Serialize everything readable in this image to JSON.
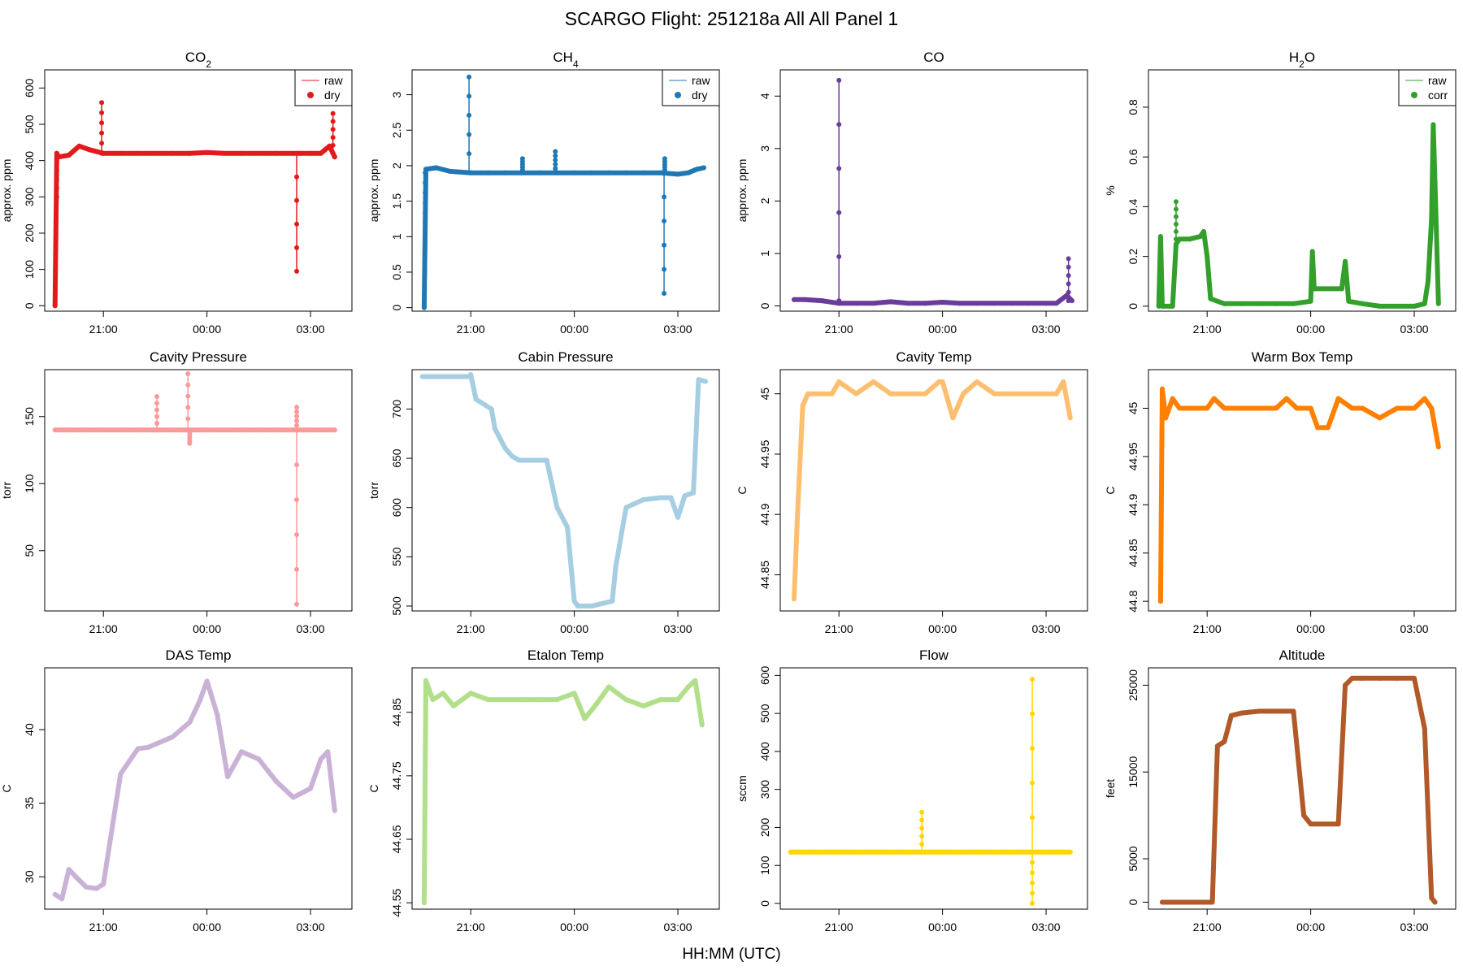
{
  "figure": {
    "title": "SCARGO Flight: 251218a  All All  Panel 1",
    "xlabel": "HH:MM (UTC)"
  },
  "chart_data": [
    {
      "id": "co2",
      "type": "line",
      "title_main": "CO",
      "title_sub": "2",
      "ylabel": "approx. ppm",
      "xlim": [
        19.3,
        4.2
      ],
      "ylim": [
        -15,
        650
      ],
      "xticks": [
        "21:00",
        "00:00",
        "03:00"
      ],
      "yticks": [
        0,
        100,
        200,
        300,
        400,
        500,
        600
      ],
      "tick_rotate": true,
      "color": "#E31A1C",
      "legend": [
        "raw",
        "dry"
      ],
      "series": [
        {
          "name": "dry",
          "x": [
            19.6,
            19.65,
            19.7,
            20.0,
            20.3,
            20.6,
            21.0,
            21.5,
            22.0,
            22.5,
            23.0,
            23.5,
            0.0,
            0.5,
            1.0,
            1.5,
            2.0,
            2.5,
            2.7,
            3.0,
            3.3,
            3.55,
            3.7
          ],
          "y": [
            0,
            420,
            410,
            415,
            440,
            430,
            420,
            420,
            420,
            420,
            420,
            420,
            422,
            420,
            420,
            420,
            420,
            420,
            420,
            420,
            420,
            440,
            410
          ]
        }
      ],
      "spikes": [
        {
          "x": 19.65,
          "y0": 420,
          "y1": 300
        },
        {
          "x": 20.95,
          "y0": 420,
          "y1": 560
        },
        {
          "x": 2.6,
          "y0": 420,
          "y1": 95
        },
        {
          "x": 3.65,
          "y0": 420,
          "y1": 530
        }
      ]
    },
    {
      "id": "ch4",
      "type": "line",
      "title_main": "CH",
      "title_sub": "4",
      "ylabel": "approx. ppm",
      "xlim": [
        19.3,
        4.2
      ],
      "ylim": [
        -0.05,
        3.35
      ],
      "xticks": [
        "21:00",
        "00:00",
        "03:00"
      ],
      "yticks": [
        0.0,
        0.5,
        1.0,
        1.5,
        2.0,
        2.5,
        3.0
      ],
      "tick_rotate": true,
      "color": "#1F78B4",
      "legend": [
        "raw",
        "dry"
      ],
      "series": [
        {
          "name": "dry",
          "x": [
            19.65,
            19.7,
            20.0,
            20.4,
            21.0,
            21.5,
            22.0,
            22.5,
            23.0,
            23.5,
            0.0,
            0.5,
            1.0,
            1.5,
            2.0,
            2.5,
            3.0,
            3.3,
            3.55,
            3.75
          ],
          "y": [
            0.0,
            1.95,
            1.97,
            1.92,
            1.9,
            1.9,
            1.9,
            1.9,
            1.9,
            1.9,
            1.9,
            1.9,
            1.9,
            1.9,
            1.9,
            1.9,
            1.88,
            1.9,
            1.95,
            1.97
          ]
        }
      ],
      "spikes": [
        {
          "x": 19.68,
          "y0": 1.9,
          "y1": 1.2
        },
        {
          "x": 20.95,
          "y0": 1.9,
          "y1": 3.25
        },
        {
          "x": 22.5,
          "y0": 1.9,
          "y1": 2.1
        },
        {
          "x": 23.45,
          "y0": 1.9,
          "y1": 2.2
        },
        {
          "x": 2.6,
          "y0": 1.9,
          "y1": 0.2
        },
        {
          "x": 2.62,
          "y0": 1.9,
          "y1": 2.1
        }
      ]
    },
    {
      "id": "co",
      "type": "scatter",
      "title_main": "CO",
      "title_sub": "",
      "ylabel": "approx. ppm",
      "xlim": [
        19.3,
        4.2
      ],
      "ylim": [
        -0.1,
        4.5
      ],
      "xticks": [
        "21:00",
        "00:00",
        "03:00"
      ],
      "yticks": [
        0,
        1,
        2,
        3,
        4
      ],
      "tick_rotate": true,
      "color": "#6A3D9A",
      "legend": [],
      "series": [
        {
          "name": "CO",
          "x": [
            19.7,
            20.0,
            20.5,
            21.0,
            21.5,
            22.0,
            22.5,
            23.0,
            23.5,
            0.0,
            0.5,
            1.0,
            1.5,
            2.0,
            2.5,
            3.0,
            3.3,
            3.6,
            3.75
          ],
          "y": [
            0.12,
            0.12,
            0.1,
            0.05,
            0.05,
            0.05,
            0.08,
            0.05,
            0.05,
            0.07,
            0.05,
            0.05,
            0.05,
            0.05,
            0.05,
            0.05,
            0.05,
            0.2,
            0.1
          ]
        }
      ],
      "spikes": [
        {
          "x": 21.0,
          "y0": 0.1,
          "y1": 4.3
        },
        {
          "x": 3.65,
          "y0": 0.1,
          "y1": 0.9
        }
      ]
    },
    {
      "id": "h2o",
      "type": "line",
      "title_main": "H",
      "title_sub": "2",
      "title_suffix": "O",
      "ylabel": "%",
      "xlim": [
        19.3,
        4.2
      ],
      "ylim": [
        -0.02,
        0.95
      ],
      "xticks": [
        "21:00",
        "00:00",
        "03:00"
      ],
      "yticks": [
        0.0,
        0.2,
        0.4,
        0.6,
        0.8
      ],
      "tick_rotate": true,
      "color": "#33A02C",
      "legend": [
        "raw",
        "corr"
      ],
      "series": [
        {
          "name": "corr",
          "x": [
            19.6,
            19.65,
            19.7,
            20.0,
            20.1,
            20.2,
            20.5,
            20.8,
            20.9,
            21.0,
            21.1,
            21.5,
            22.0,
            22.5,
            23.0,
            23.5,
            0.0,
            0.05,
            0.1,
            0.5,
            0.9,
            1.0,
            1.1,
            1.5,
            2.0,
            2.5,
            3.0,
            3.3,
            3.4,
            3.5,
            3.55,
            3.6,
            3.7
          ],
          "y": [
            0.0,
            0.28,
            0.0,
            0.0,
            0.25,
            0.27,
            0.27,
            0.28,
            0.3,
            0.2,
            0.03,
            0.01,
            0.01,
            0.01,
            0.01,
            0.01,
            0.02,
            0.22,
            0.07,
            0.07,
            0.07,
            0.18,
            0.02,
            0.01,
            0.0,
            0.0,
            0.0,
            0.01,
            0.1,
            0.35,
            0.73,
            0.5,
            0.01
          ]
        }
      ],
      "spikes": [
        {
          "x": 20.1,
          "y0": 0.27,
          "y1": 0.42
        }
      ]
    },
    {
      "id": "cavity-pressure",
      "type": "scatter",
      "title_main": "Cavity Pressure",
      "title_sub": "",
      "ylabel": "torr",
      "xlim": [
        19.3,
        4.2
      ],
      "ylim": [
        5,
        185
      ],
      "xticks": [
        "21:00",
        "00:00",
        "03:00"
      ],
      "yticks": [
        50,
        100,
        150
      ],
      "tick_rotate": true,
      "color": "#FB9A99",
      "legend": [],
      "series": [
        {
          "name": "cavity-pressure",
          "x": [
            19.6,
            20.0,
            20.5,
            21.0,
            21.5,
            22.0,
            22.5,
            23.0,
            23.5,
            0.0,
            0.5,
            1.0,
            1.5,
            2.0,
            2.5,
            3.0,
            3.5,
            3.7
          ],
          "y": [
            140,
            140,
            140,
            140,
            140,
            140,
            140,
            140,
            140,
            140,
            140,
            140,
            140,
            140,
            140,
            140,
            140,
            140
          ]
        }
      ],
      "spikes": [
        {
          "x": 22.55,
          "y0": 140,
          "y1": 165
        },
        {
          "x": 23.45,
          "y0": 140,
          "y1": 182
        },
        {
          "x": 23.5,
          "y0": 140,
          "y1": 130
        },
        {
          "x": 2.6,
          "y0": 140,
          "y1": 10
        },
        {
          "x": 2.6,
          "y0": 140,
          "y1": 157
        }
      ]
    },
    {
      "id": "cabin-pressure",
      "type": "line",
      "title_main": "Cabin Pressure",
      "title_sub": "",
      "ylabel": "torr",
      "xlim": [
        19.3,
        4.2
      ],
      "ylim": [
        495,
        740
      ],
      "xticks": [
        "21:00",
        "00:00",
        "03:00"
      ],
      "yticks": [
        500,
        550,
        600,
        650,
        700
      ],
      "tick_rotate": true,
      "color": "#A6CEE3",
      "legend": [],
      "series": [
        {
          "name": "cabin-pressure",
          "x": [
            19.6,
            20.5,
            20.95,
            21.0,
            21.15,
            21.6,
            21.7,
            22.0,
            22.2,
            22.4,
            23.0,
            23.2,
            23.5,
            23.8,
            0.0,
            0.1,
            0.5,
            1.1,
            1.2,
            1.5,
            2.0,
            2.5,
            2.8,
            3.0,
            3.2,
            3.45,
            3.6,
            3.8
          ],
          "y": [
            733,
            733,
            733,
            735,
            710,
            700,
            680,
            660,
            652,
            648,
            648,
            648,
            600,
            580,
            505,
            500,
            500,
            505,
            540,
            600,
            608,
            610,
            610,
            590,
            612,
            615,
            730,
            728
          ]
        }
      ],
      "spikes": []
    },
    {
      "id": "cavity-temp",
      "type": "line",
      "title_main": "Cavity Temp",
      "title_sub": "",
      "ylabel": "C",
      "xlim": [
        19.3,
        4.2
      ],
      "ylim": [
        44.82,
        45.02
      ],
      "xticks": [
        "21:00",
        "00:00",
        "03:00"
      ],
      "yticks": [
        44.85,
        44.9,
        44.95,
        45.0
      ],
      "tick_rotate": true,
      "color": "#FDBF6F",
      "legend": [],
      "series": [
        {
          "name": "cavity-temp",
          "x": [
            19.7,
            19.8,
            19.95,
            20.1,
            20.4,
            20.8,
            21.0,
            21.5,
            22.0,
            22.5,
            23.0,
            23.5,
            23.9,
            0.0,
            0.3,
            0.6,
            1.0,
            1.5,
            2.0,
            2.5,
            3.0,
            3.3,
            3.5,
            3.7
          ],
          "y": [
            44.83,
            44.9,
            44.99,
            45.0,
            45.0,
            45.0,
            45.01,
            45.0,
            45.01,
            45.0,
            45.0,
            45.0,
            45.01,
            45.01,
            44.98,
            45.0,
            45.01,
            45.0,
            45.0,
            45.0,
            45.0,
            45.0,
            45.01,
            44.98
          ]
        }
      ],
      "spikes": []
    },
    {
      "id": "warm-box-temp",
      "type": "line",
      "title_main": "Warm Box Temp",
      "title_sub": "",
      "ylabel": "C",
      "xlim": [
        19.3,
        4.2
      ],
      "ylim": [
        44.79,
        45.04
      ],
      "xticks": [
        "21:00",
        "00:00",
        "03:00"
      ],
      "yticks": [
        44.8,
        44.85,
        44.9,
        44.95,
        45.0
      ],
      "tick_rotate": true,
      "color": "#FF7F00",
      "legend": [],
      "series": [
        {
          "name": "warm-box-temp",
          "x": [
            19.65,
            19.7,
            19.8,
            20.0,
            20.2,
            20.5,
            20.8,
            21.0,
            21.2,
            21.5,
            22.0,
            22.5,
            23.0,
            23.3,
            23.6,
            0.0,
            0.2,
            0.5,
            0.8,
            1.2,
            1.5,
            2.0,
            2.5,
            3.0,
            3.3,
            3.5,
            3.7
          ],
          "y": [
            44.8,
            45.02,
            44.99,
            45.01,
            45.0,
            45.0,
            45.0,
            45.0,
            45.01,
            45.0,
            45.0,
            45.0,
            45.0,
            45.01,
            45.0,
            45.0,
            44.98,
            44.98,
            45.01,
            45.0,
            45.0,
            44.99,
            45.0,
            45.0,
            45.01,
            45.0,
            44.96
          ]
        }
      ],
      "spikes": []
    },
    {
      "id": "das-temp",
      "type": "line",
      "title_main": "DAS Temp",
      "title_sub": "",
      "ylabel": "C",
      "xlim": [
        19.3,
        4.2
      ],
      "ylim": [
        27.8,
        44.2
      ],
      "xticks": [
        "21:00",
        "00:00",
        "03:00"
      ],
      "yticks": [
        30,
        35,
        40
      ],
      "tick_rotate": true,
      "color": "#CAB2D6",
      "legend": [],
      "series": [
        {
          "name": "das-temp",
          "x": [
            19.6,
            19.8,
            20.0,
            20.2,
            20.5,
            20.8,
            21.0,
            21.5,
            22.0,
            22.3,
            23.0,
            23.5,
            23.8,
            0.0,
            0.3,
            0.6,
            1.0,
            1.5,
            2.0,
            2.5,
            3.0,
            3.3,
            3.5,
            3.7
          ],
          "y": [
            28.8,
            28.5,
            30.5,
            30.0,
            29.3,
            29.2,
            29.5,
            37.0,
            38.7,
            38.8,
            39.5,
            40.5,
            42.0,
            43.3,
            41.0,
            36.8,
            38.5,
            38.0,
            36.5,
            35.4,
            36.0,
            38.0,
            38.5,
            34.5
          ]
        }
      ],
      "spikes": []
    },
    {
      "id": "etalon-temp",
      "type": "line",
      "title_main": "Etalon Temp",
      "title_sub": "",
      "ylabel": "C",
      "xlim": [
        19.3,
        4.2
      ],
      "ylim": [
        44.54,
        44.92
      ],
      "xticks": [
        "21:00",
        "00:00",
        "03:00"
      ],
      "yticks": [
        44.55,
        44.65,
        44.75,
        44.85
      ],
      "tick_rotate": true,
      "color": "#B2DF8A",
      "legend": [],
      "series": [
        {
          "name": "etalon-temp",
          "x": [
            19.65,
            19.7,
            19.9,
            20.2,
            20.5,
            21.0,
            21.5,
            22.0,
            22.5,
            23.0,
            23.5,
            0.0,
            0.3,
            0.6,
            1.0,
            1.5,
            2.0,
            2.5,
            3.0,
            3.3,
            3.5,
            3.7
          ],
          "y": [
            44.55,
            44.9,
            44.87,
            44.88,
            44.86,
            44.88,
            44.87,
            44.87,
            44.87,
            44.87,
            44.87,
            44.88,
            44.84,
            44.86,
            44.89,
            44.87,
            44.86,
            44.87,
            44.87,
            44.89,
            44.9,
            44.83
          ]
        }
      ],
      "spikes": []
    },
    {
      "id": "flow",
      "type": "scatter",
      "title_main": "Flow",
      "title_sub": "",
      "ylabel": "sccm",
      "xlim": [
        19.3,
        4.2
      ],
      "ylim": [
        -15,
        620
      ],
      "xticks": [
        "21:00",
        "00:00",
        "03:00"
      ],
      "yticks": [
        0,
        100,
        200,
        300,
        400,
        500,
        600
      ],
      "tick_rotate": true,
      "color": "#FFD700",
      "legend": [],
      "series": [
        {
          "name": "flow",
          "x": [
            19.6,
            20.0,
            20.5,
            21.0,
            21.5,
            22.0,
            22.5,
            23.0,
            23.5,
            0.0,
            0.5,
            1.0,
            1.5,
            2.0,
            2.5,
            3.0,
            3.3,
            3.5,
            3.7
          ],
          "y": [
            135,
            135,
            135,
            135,
            135,
            135,
            135,
            135,
            135,
            135,
            135,
            135,
            135,
            135,
            135,
            135,
            135,
            135,
            135
          ]
        }
      ],
      "spikes": [
        {
          "x": 2.6,
          "y0": 135,
          "y1": 590
        },
        {
          "x": 23.4,
          "y0": 135,
          "y1": 240
        },
        {
          "x": 2.6,
          "y0": 135,
          "y1": 0
        }
      ]
    },
    {
      "id": "altitude",
      "type": "line",
      "title_main": "Altitude",
      "title_sub": "",
      "ylabel": "feet",
      "xlim": [
        19.3,
        4.2
      ],
      "ylim": [
        -800,
        27000
      ],
      "xticks": [
        "21:00",
        "00:00",
        "03:00"
      ],
      "yticks": [
        0,
        5000,
        15000,
        25000
      ],
      "tick_rotate": true,
      "color": "#B15928",
      "legend": [],
      "series": [
        {
          "name": "altitude",
          "x": [
            19.7,
            20.5,
            21.0,
            21.15,
            21.3,
            21.5,
            21.6,
            21.7,
            22.0,
            22.5,
            23.0,
            23.5,
            23.8,
            0.0,
            0.5,
            0.8,
            1.0,
            1.2,
            1.5,
            2.0,
            2.5,
            3.0,
            3.3,
            3.5,
            3.6
          ],
          "y": [
            0,
            0,
            0,
            0,
            18000,
            18500,
            20000,
            21500,
            21800,
            22000,
            22000,
            22000,
            10000,
            9000,
            9000,
            9000,
            25000,
            25800,
            25800,
            25800,
            25800,
            25800,
            20000,
            500,
            0
          ]
        }
      ],
      "spikes": []
    }
  ]
}
